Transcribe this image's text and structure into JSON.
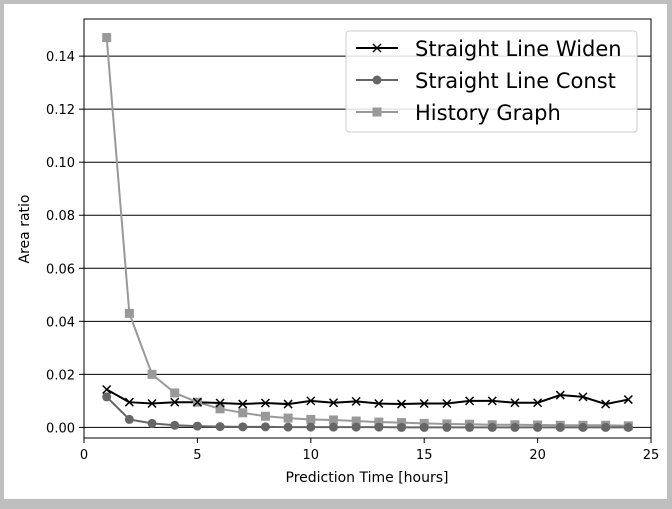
{
  "chart_data": {
    "type": "line",
    "xlabel": "Prediction Time [hours]",
    "ylabel": "Area ratio",
    "xlim": [
      0,
      25
    ],
    "ylim": [
      -0.004,
      0.154
    ],
    "xticks": [
      0,
      5,
      10,
      15,
      20,
      25
    ],
    "yticks": [
      0.0,
      0.02,
      0.04,
      0.06,
      0.08,
      0.1,
      0.12,
      0.14
    ],
    "ytick_labels": [
      "0.00",
      "0.02",
      "0.04",
      "0.06",
      "0.08",
      "0.10",
      "0.12",
      "0.14"
    ],
    "grid": "horizontal",
    "legend_position": "top-right",
    "x": [
      1,
      2,
      3,
      4,
      5,
      6,
      7,
      8,
      9,
      10,
      11,
      12,
      13,
      14,
      15,
      16,
      17,
      18,
      19,
      20,
      21,
      22,
      23,
      24
    ],
    "series": [
      {
        "name": "Straight Line Widen",
        "marker": "x",
        "color": "#000000",
        "values": [
          0.0143,
          0.0095,
          0.009,
          0.0095,
          0.0095,
          0.0092,
          0.0088,
          0.0092,
          0.0088,
          0.01,
          0.0093,
          0.0098,
          0.009,
          0.0088,
          0.009,
          0.009,
          0.01,
          0.01,
          0.0093,
          0.0093,
          0.0122,
          0.0115,
          0.0088,
          0.0105
        ]
      },
      {
        "name": "Straight Line Const",
        "marker": "circle",
        "color": "#666666",
        "values": [
          0.0115,
          0.003,
          0.0015,
          0.0008,
          0.0005,
          0.0003,
          0.0002,
          0.0002,
          0.0001,
          0.0001,
          0.0001,
          0.0001,
          0.0001,
          0.0,
          0.0,
          0.0,
          0.0,
          0.0,
          0.0,
          0.0,
          0.0,
          0.0,
          0.0,
          0.0
        ]
      },
      {
        "name": "History Graph",
        "marker": "square",
        "color": "#999999",
        "values": [
          0.147,
          0.043,
          0.02,
          0.013,
          0.0095,
          0.007,
          0.0055,
          0.0042,
          0.0035,
          0.003,
          0.0028,
          0.0024,
          0.002,
          0.0018,
          0.0015,
          0.0013,
          0.0012,
          0.001,
          0.001,
          0.0009,
          0.0008,
          0.0008,
          0.0008,
          0.0006
        ]
      }
    ]
  }
}
